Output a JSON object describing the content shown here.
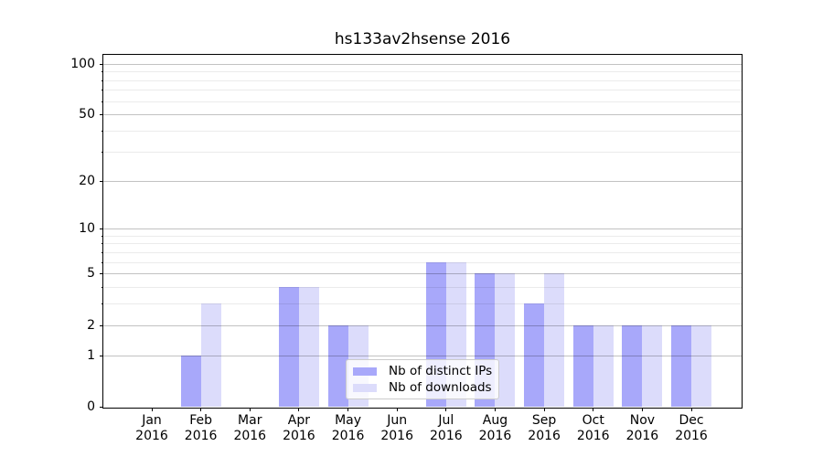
{
  "chart_data": {
    "type": "bar",
    "title": "hs133av2hsense 2016",
    "categories": [
      "Jan",
      "Feb",
      "Mar",
      "Apr",
      "May",
      "Jun",
      "Jul",
      "Aug",
      "Sep",
      "Oct",
      "Nov",
      "Dec"
    ],
    "year_label": "2016",
    "series": [
      {
        "name": "Nb of distinct IPs",
        "color": "#a8a8fa",
        "values": [
          0,
          1,
          0,
          4,
          2,
          0,
          6,
          5,
          3,
          2,
          2,
          2
        ]
      },
      {
        "name": "Nb of downloads",
        "color": "#dcdcfb",
        "values": [
          0,
          3,
          0,
          4,
          2,
          0,
          6,
          5,
          5,
          2,
          2,
          2
        ]
      }
    ],
    "xlabel": "",
    "ylabel": "",
    "yscale": "log1p",
    "ylim": [
      0,
      113
    ],
    "yticks_major": [
      0,
      1,
      2,
      5,
      10,
      20,
      50,
      100
    ],
    "yticks_minor": [
      3,
      4,
      6,
      7,
      8,
      9,
      30,
      40,
      60,
      70,
      80,
      90
    ],
    "grid": true,
    "grid_over_bars": true,
    "legend_position": "lower center-right inside plot"
  }
}
